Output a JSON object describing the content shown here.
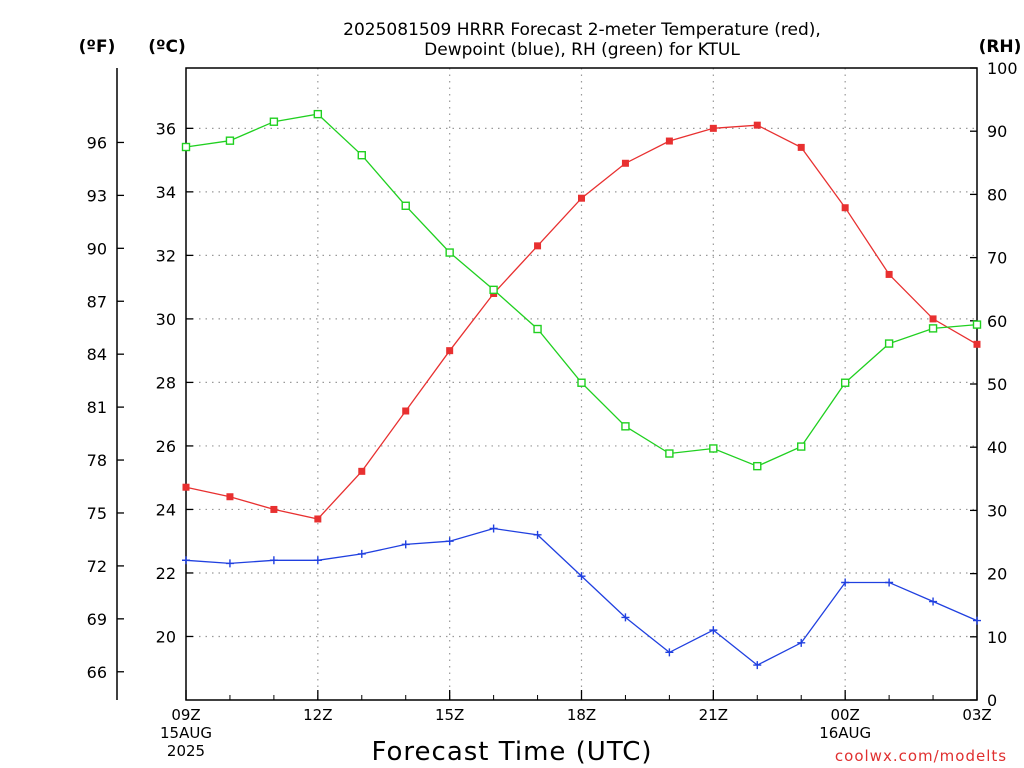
{
  "chart_data": {
    "type": "line",
    "title_line1": "2025081509 HRRR Forecast 2-meter Temperature (red),",
    "title_line2": "Dewpoint (blue), RH (green) for KTUL",
    "xlabel": "Forecast Time (UTC)",
    "credit": "coolwx.com/modelts",
    "unit_labels": {
      "fahrenheit": "(ºF)",
      "celsius": "(ºC)",
      "rh": "(RH)"
    },
    "x_tick_labels": [
      {
        "hour": 0,
        "label": "09Z",
        "sub1": "15AUG",
        "sub2": "2025"
      },
      {
        "hour": 3,
        "label": "12Z",
        "sub1": "",
        "sub2": ""
      },
      {
        "hour": 6,
        "label": "15Z",
        "sub1": "",
        "sub2": ""
      },
      {
        "hour": 9,
        "label": "18Z",
        "sub1": "",
        "sub2": ""
      },
      {
        "hour": 12,
        "label": "21Z",
        "sub1": "",
        "sub2": ""
      },
      {
        "hour": 15,
        "label": "00Z",
        "sub1": "16AUG",
        "sub2": ""
      },
      {
        "hour": 18,
        "label": "03Z",
        "sub1": "",
        "sub2": ""
      }
    ],
    "x_hours": [
      0,
      1,
      2,
      3,
      4,
      5,
      6,
      7,
      8,
      9,
      10,
      11,
      12,
      13,
      14,
      15,
      16,
      17,
      18
    ],
    "celsius_axis": {
      "range": [
        18.0,
        37.9
      ],
      "ticks": [
        20,
        22,
        24,
        26,
        28,
        30,
        32,
        34,
        36
      ]
    },
    "fahrenheit_axis": {
      "ticks": [
        66,
        69,
        72,
        75,
        78,
        81,
        84,
        87,
        90,
        93,
        96
      ]
    },
    "rh_axis": {
      "range": [
        0,
        100
      ],
      "ticks": [
        0,
        10,
        20,
        30,
        40,
        50,
        60,
        70,
        80,
        90,
        100
      ]
    },
    "grid": true,
    "colors": {
      "temperature": "#e83030",
      "dewpoint": "#2040e0",
      "rh": "#20d020",
      "grid": "#999999"
    },
    "series": [
      {
        "name": "Temperature",
        "axis": "celsius",
        "marker": "filled-square",
        "values": [
          24.7,
          24.4,
          24.0,
          23.7,
          25.2,
          27.1,
          29.0,
          30.8,
          32.3,
          33.8,
          34.9,
          35.6,
          36.0,
          36.1,
          35.4,
          33.5,
          31.4,
          30.0,
          29.2
        ]
      },
      {
        "name": "Dewpoint",
        "axis": "celsius",
        "marker": "plus",
        "values": [
          22.4,
          22.3,
          22.4,
          22.4,
          22.6,
          22.9,
          23.0,
          23.4,
          23.2,
          21.9,
          20.6,
          19.5,
          20.2,
          19.1,
          19.8,
          21.7,
          21.7,
          21.1,
          20.5
        ]
      },
      {
        "name": "RH",
        "axis": "rh",
        "marker": "open-square",
        "values": [
          87.5,
          88.5,
          91.5,
          92.7,
          86.2,
          78.2,
          70.8,
          64.9,
          58.7,
          50.2,
          43.3,
          39.0,
          39.8,
          37.0,
          40.1,
          50.2,
          56.4,
          58.8,
          59.4
        ]
      }
    ]
  }
}
